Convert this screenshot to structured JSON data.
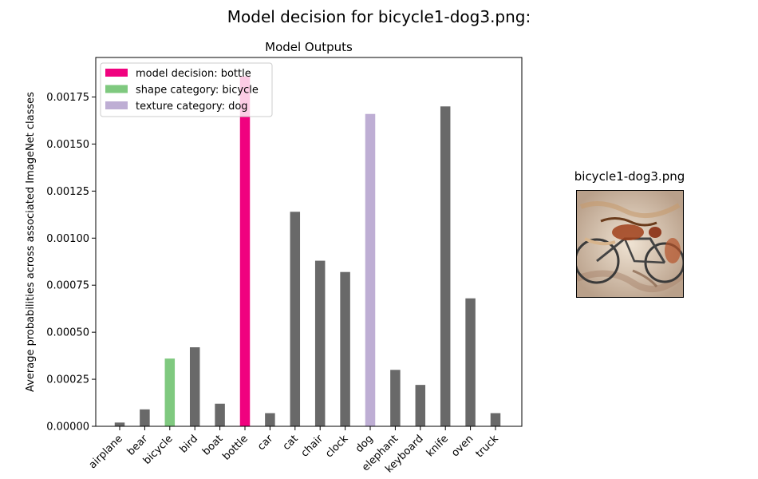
{
  "figure": {
    "suptitle": "Model decision for bicycle1-dog3.png:",
    "image_title": "bicycle1-dog3.png"
  },
  "colors": {
    "default_bar": "#696969",
    "model_decision": "#f0027f",
    "shape_category": "#7fc97f",
    "texture_category": "#beaed4"
  },
  "chart_data": {
    "type": "bar",
    "title": "Model Outputs",
    "xlabel": "",
    "ylabel": "Average probabilities across associated ImageNet classes",
    "categories": [
      "airplane",
      "bear",
      "bicycle",
      "bird",
      "boat",
      "bottle",
      "car",
      "cat",
      "chair",
      "clock",
      "dog",
      "elephant",
      "keyboard",
      "knife",
      "oven",
      "truck"
    ],
    "values": [
      2e-05,
      9e-05,
      0.00036,
      0.00042,
      0.00012,
      0.00186,
      7e-05,
      0.00114,
      0.00088,
      0.00082,
      0.00166,
      0.0003,
      0.00022,
      0.0017,
      0.00068,
      7e-05
    ],
    "highlights": {
      "bottle": "model_decision",
      "bicycle": "shape_category",
      "dog": "texture_category"
    },
    "yticks": [
      0,
      0.00025,
      0.0005,
      0.00075,
      0.001,
      0.00125,
      0.0015,
      0.00175
    ],
    "ytick_labels": [
      "0.00000",
      "0.00025",
      "0.00050",
      "0.00075",
      "0.00100",
      "0.00125",
      "0.00150",
      "0.00175"
    ],
    "ylim": [
      0,
      0.00196
    ],
    "legend": {
      "placement": "top-left",
      "entries": [
        {
          "label": "model decision: bottle",
          "color_key": "model_decision"
        },
        {
          "label": "shape category: bicycle",
          "color_key": "shape_category"
        },
        {
          "label": "texture category: dog",
          "color_key": "texture_category"
        }
      ]
    },
    "grid": false
  }
}
